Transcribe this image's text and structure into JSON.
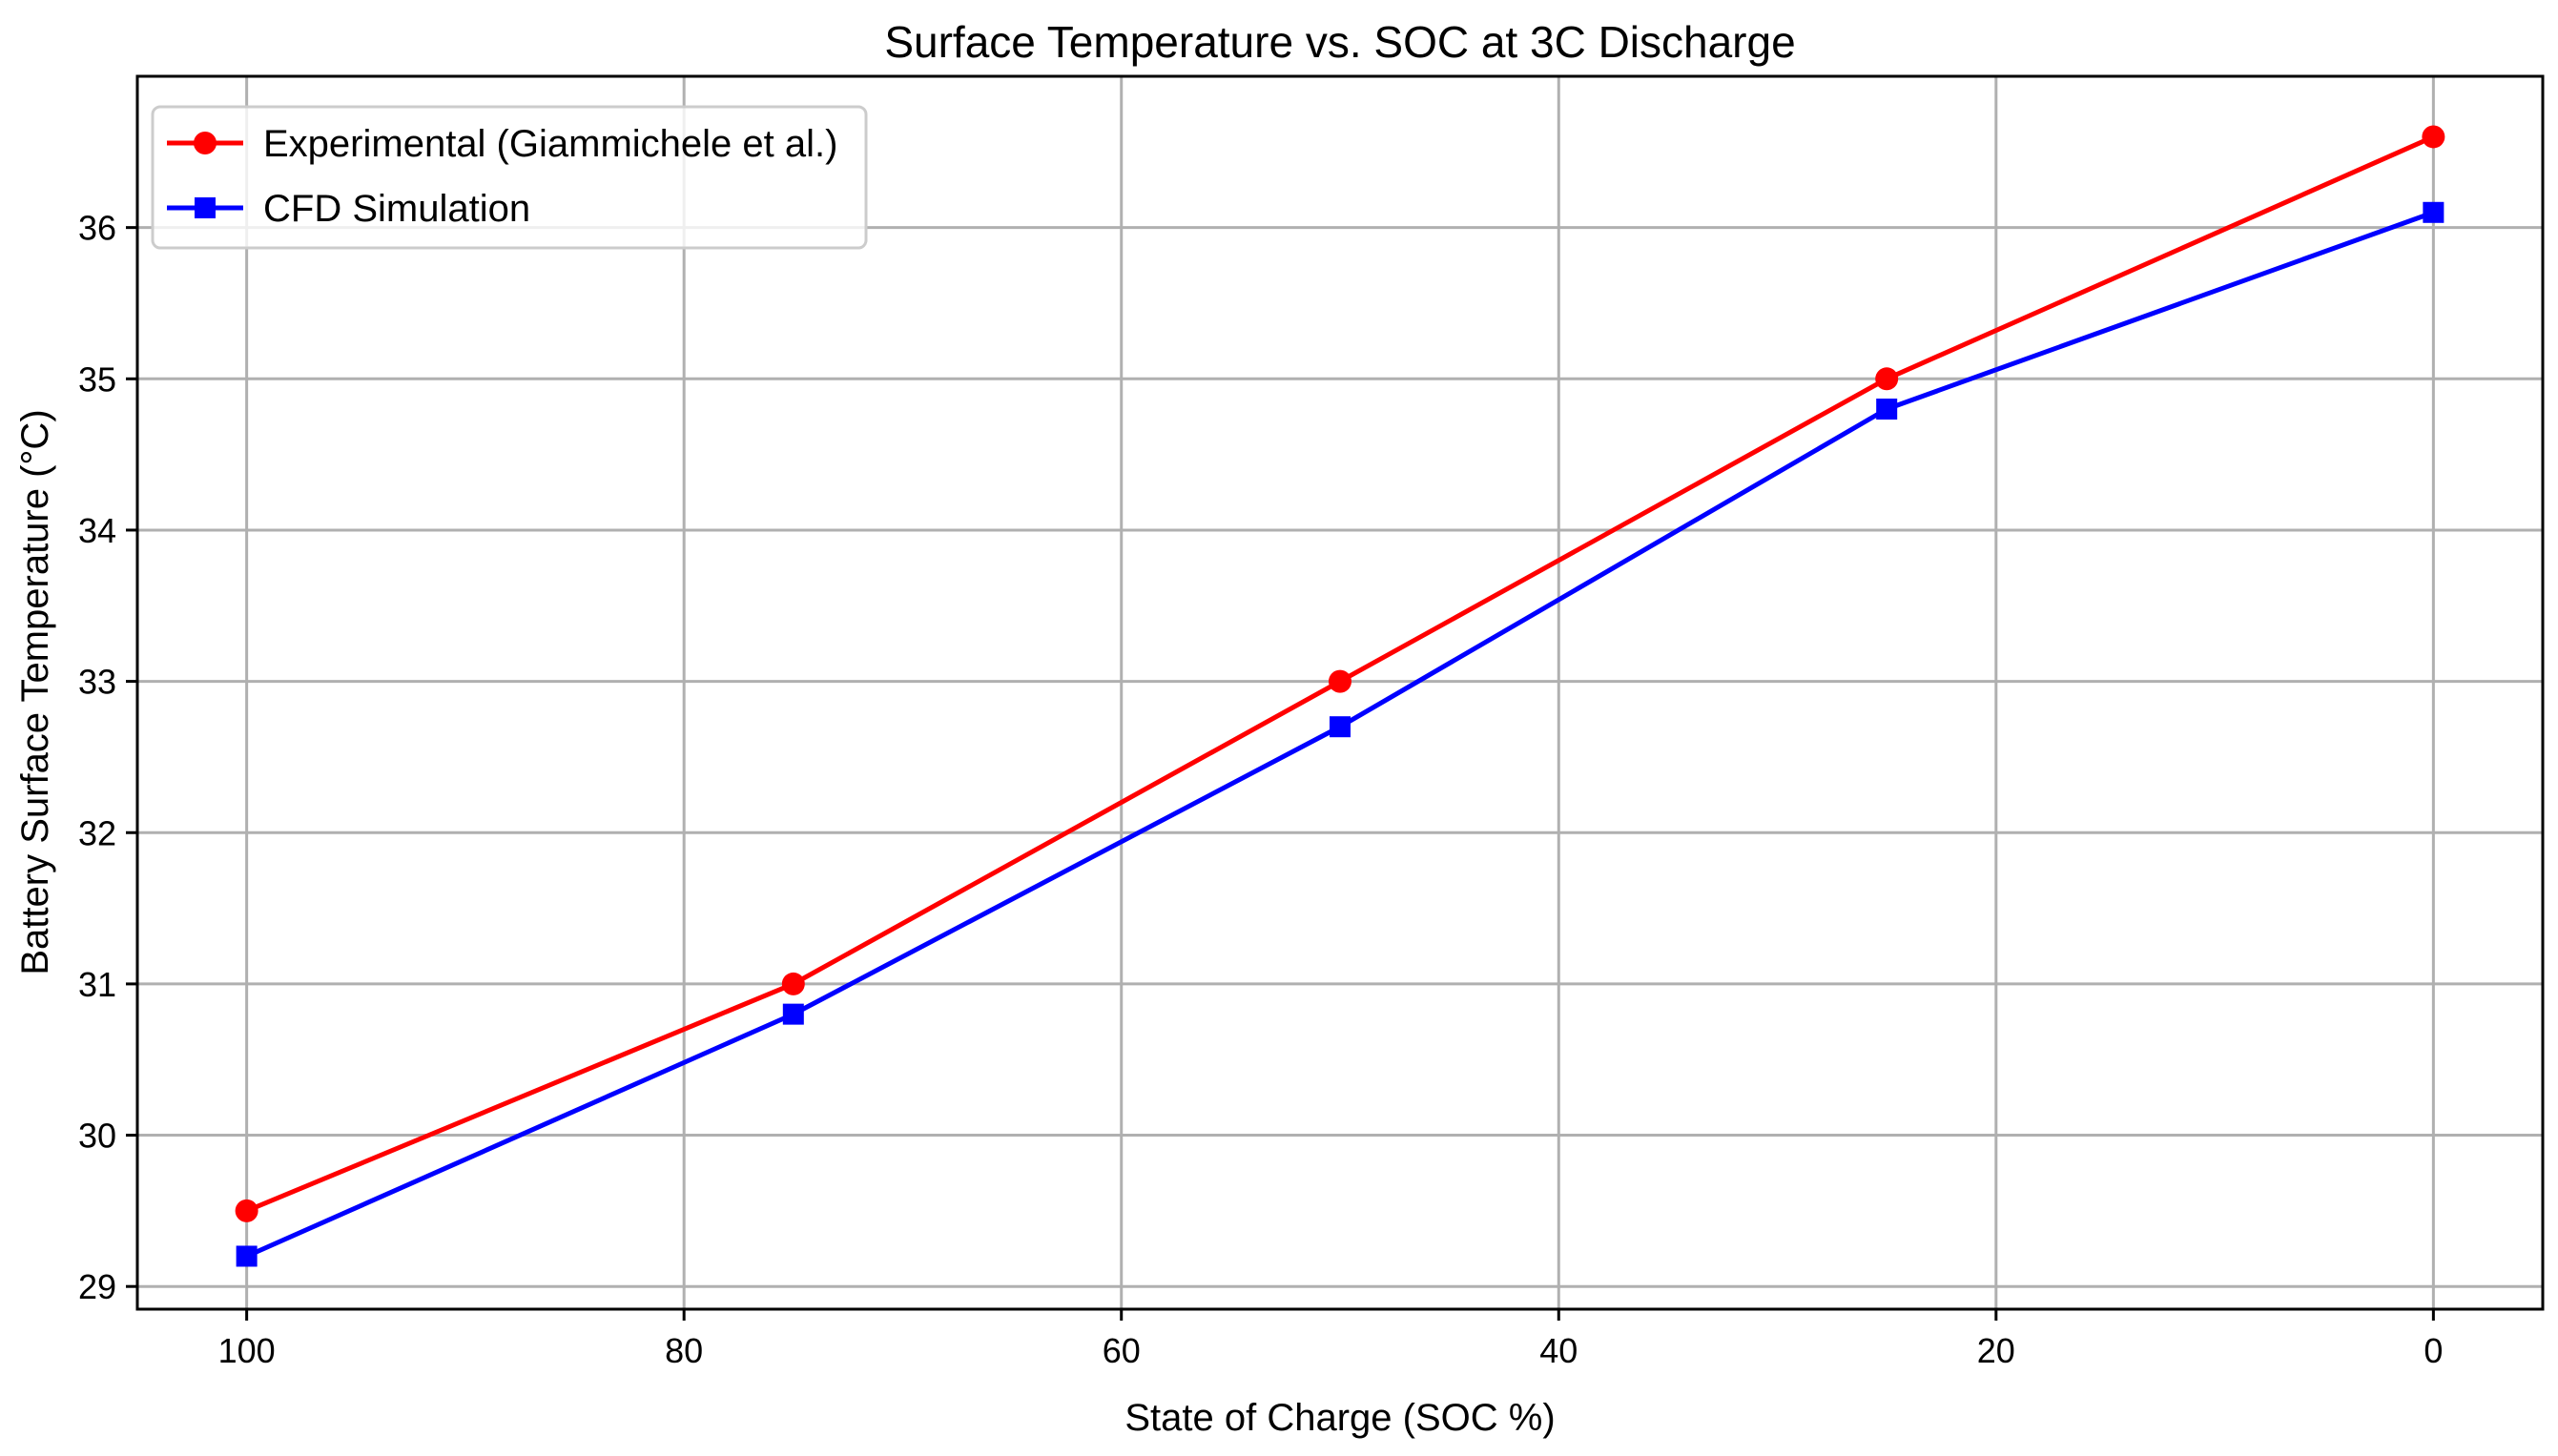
{
  "chart_data": {
    "type": "line",
    "title": "Surface Temperature vs. SOC at 3C Discharge",
    "xlabel": "State of Charge (SOC %)",
    "ylabel": "Battery Surface Temperature (°C)",
    "xlim": [
      105,
      -5
    ],
    "ylim": [
      28.85,
      37.0
    ],
    "x_inverted": true,
    "grid": true,
    "legend_location": "upper-left",
    "xticks": [
      100,
      80,
      60,
      40,
      20,
      0
    ],
    "xtick_labels": [
      "100",
      "80",
      "60",
      "40",
      "20",
      "0"
    ],
    "yticks": [
      29,
      30,
      31,
      32,
      33,
      34,
      35,
      36
    ],
    "ytick_labels": [
      "29",
      "30",
      "31",
      "32",
      "33",
      "34",
      "35",
      "36"
    ],
    "x": [
      100,
      75,
      50,
      25,
      0
    ],
    "series": [
      {
        "name": "Experimental (Giammichele et al.)",
        "values": [
          29.5,
          31.0,
          33.0,
          35.0,
          36.6
        ],
        "color": "#ff0000",
        "marker": "circle"
      },
      {
        "name": "CFD Simulation",
        "values": [
          29.2,
          30.8,
          32.7,
          34.8,
          36.1
        ],
        "color": "#0000ff",
        "marker": "square"
      }
    ]
  }
}
